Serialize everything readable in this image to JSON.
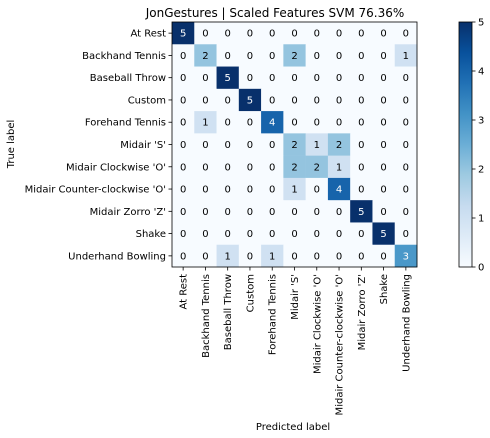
{
  "chart_data": {
    "type": "heatmap",
    "title": "JonGestures | Scaled Features SVM 76.36%",
    "xlabel": "Predicted label",
    "ylabel": "True label",
    "categories": [
      "At Rest",
      "Backhand Tennis",
      "Baseball Throw",
      "Custom",
      "Forehand Tennis",
      "Midair 'S'",
      "Midair Clockwise 'O'",
      "Midair Counter-clockwise 'O'",
      "Midair Zorro 'Z'",
      "Shake",
      "Underhand Bowling"
    ],
    "matrix": [
      [
        5,
        0,
        0,
        0,
        0,
        0,
        0,
        0,
        0,
        0,
        0
      ],
      [
        0,
        2,
        0,
        0,
        0,
        2,
        0,
        0,
        0,
        0,
        1
      ],
      [
        0,
        0,
        5,
        0,
        0,
        0,
        0,
        0,
        0,
        0,
        0
      ],
      [
        0,
        0,
        0,
        5,
        0,
        0,
        0,
        0,
        0,
        0,
        0
      ],
      [
        0,
        1,
        0,
        0,
        4,
        0,
        0,
        0,
        0,
        0,
        0
      ],
      [
        0,
        0,
        0,
        0,
        0,
        2,
        1,
        2,
        0,
        0,
        0
      ],
      [
        0,
        0,
        0,
        0,
        0,
        2,
        2,
        1,
        0,
        0,
        0
      ],
      [
        0,
        0,
        0,
        0,
        0,
        1,
        0,
        4,
        0,
        0,
        0
      ],
      [
        0,
        0,
        0,
        0,
        0,
        0,
        0,
        0,
        5,
        0,
        0
      ],
      [
        0,
        0,
        0,
        0,
        0,
        0,
        0,
        0,
        0,
        5,
        0
      ],
      [
        0,
        0,
        1,
        0,
        1,
        0,
        0,
        0,
        0,
        0,
        3
      ]
    ],
    "colorbar": {
      "min": 0,
      "max": 5,
      "ticks": [
        0,
        1,
        2,
        3,
        4,
        5
      ],
      "colormap": "Blues"
    }
  }
}
